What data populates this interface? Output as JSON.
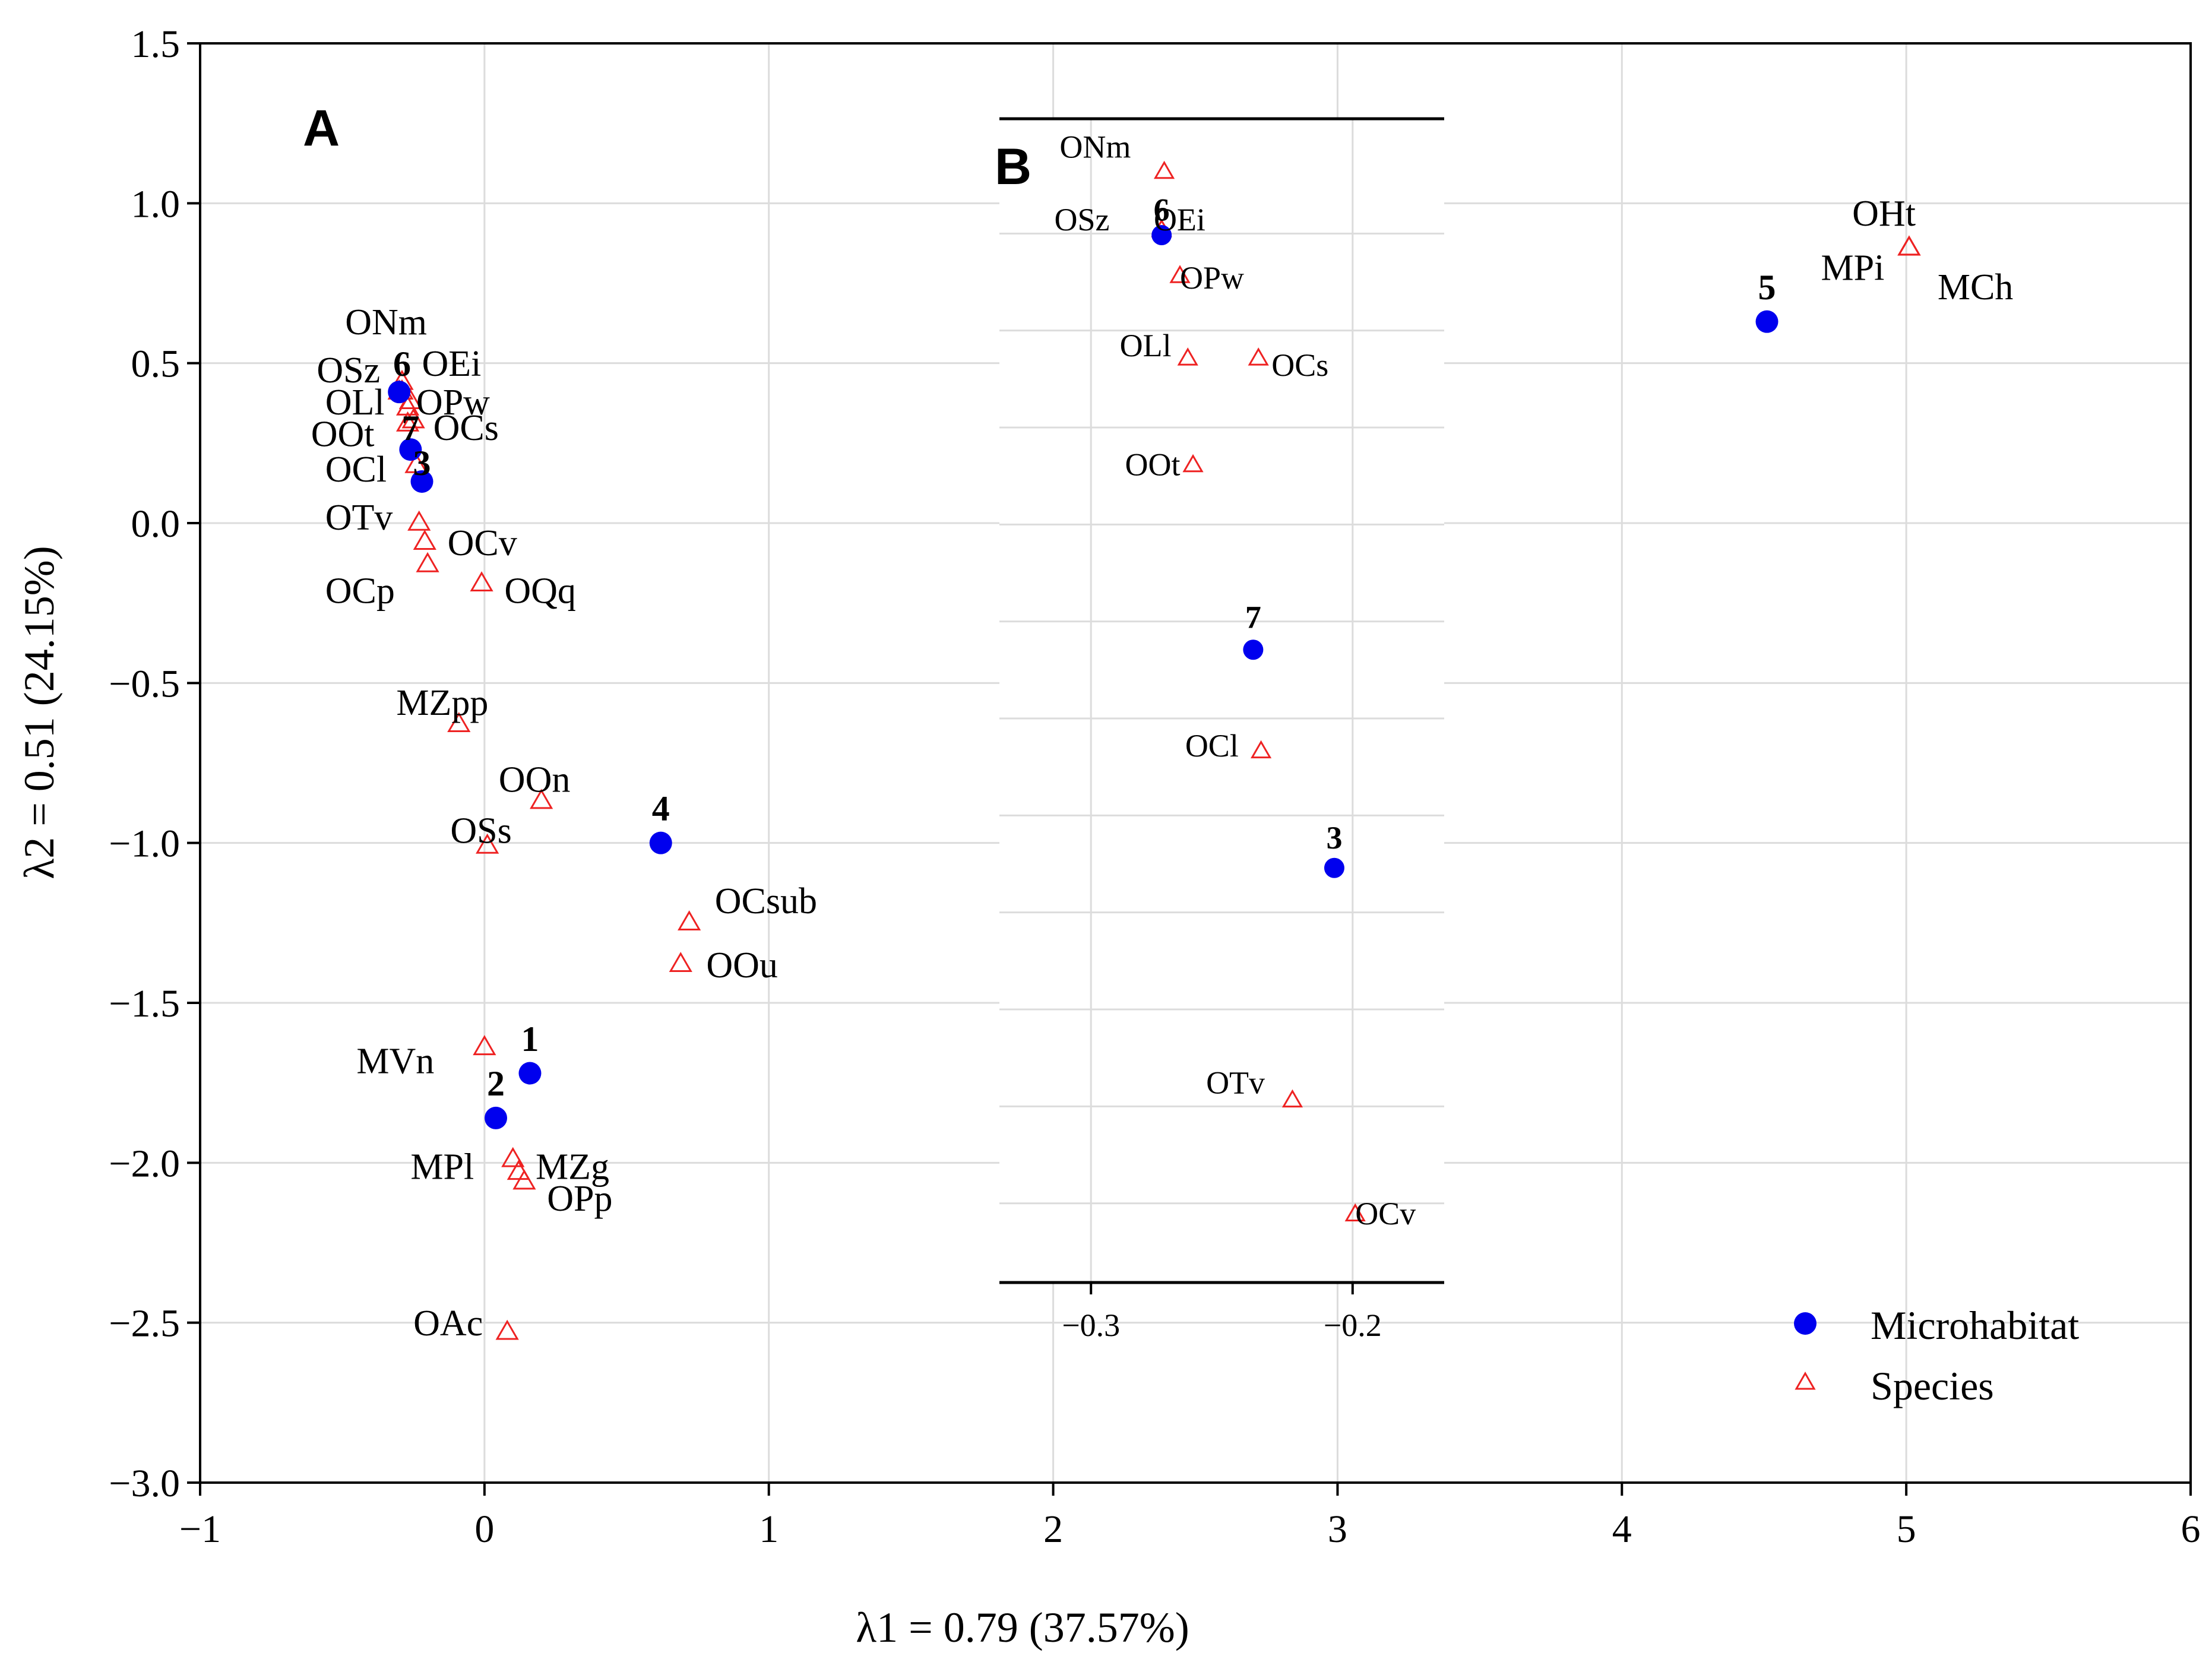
{
  "chart_data": [
    {
      "panel": "A",
      "type": "scatter",
      "xlabel": "λ1 = 0.79 (37.57%)",
      "ylabel": "λ2 = 0.51 (24.15%)",
      "xlim": [
        -1,
        6
      ],
      "ylim": [
        -3,
        1.5
      ],
      "xticks": [
        -1,
        0,
        1,
        2,
        3,
        4,
        5,
        6
      ],
      "yticks": [
        -3.0,
        -2.5,
        -2.0,
        -1.5,
        -1.0,
        -0.5,
        0.0,
        0.5,
        1.0,
        1.5
      ],
      "xtick_labels": [
        "−1",
        "0",
        "1",
        "2",
        "3",
        "4",
        "5",
        "6"
      ],
      "ytick_labels": [
        "−3.0",
        "−2.5",
        "−2.0",
        "−1.5",
        "−1.0",
        "−0.5",
        "0.0",
        "0.5",
        "1.0",
        "1.5"
      ],
      "grid": true,
      "legend_position": "bottom-right",
      "series": [
        {
          "name": "Microhabitat",
          "marker": "filled-circle",
          "color": "#0000ee",
          "points": [
            {
              "label": "1",
              "x": 0.16,
              "y": -1.72
            },
            {
              "label": "2",
              "x": 0.04,
              "y": -1.86
            },
            {
              "label": "3",
              "x": -0.22,
              "y": 0.13
            },
            {
              "label": "4",
              "x": 0.62,
              "y": -1.0
            },
            {
              "label": "5",
              "x": 4.51,
              "y": 0.63
            },
            {
              "label": "6",
              "x": -0.3,
              "y": 0.41
            },
            {
              "label": "7",
              "x": -0.26,
              "y": 0.23
            }
          ]
        },
        {
          "name": "Species",
          "marker": "open-triangle",
          "color": "#ee2222",
          "points": [
            {
              "label": "ONm",
              "x": -0.29,
              "y": 0.44
            },
            {
              "label": "OSz",
              "x": -0.3,
              "y": 0.41
            },
            {
              "label": "OEi",
              "x": -0.29,
              "y": 0.41
            },
            {
              "label": "OLl",
              "x": -0.27,
              "y": 0.36
            },
            {
              "label": "OPw",
              "x": -0.26,
              "y": 0.38
            },
            {
              "label": "OOt",
              "x": -0.27,
              "y": 0.31
            },
            {
              "label": "OCs",
              "x": -0.25,
              "y": 0.32
            },
            {
              "label": "OCl",
              "x": -0.24,
              "y": 0.18
            },
            {
              "label": "OTv",
              "x": -0.23,
              "y": 0.0
            },
            {
              "label": "OCv",
              "x": -0.21,
              "y": -0.06
            },
            {
              "label": "OCp",
              "x": -0.2,
              "y": -0.13
            },
            {
              "label": "OQq",
              "x": -0.01,
              "y": -0.19
            },
            {
              "label": "MZpp",
              "x": -0.09,
              "y": -0.63
            },
            {
              "label": "OOn",
              "x": 0.2,
              "y": -0.87
            },
            {
              "label": "OSs",
              "x": 0.01,
              "y": -1.01
            },
            {
              "label": "OCsub",
              "x": 0.72,
              "y": -1.25
            },
            {
              "label": "OOu",
              "x": 0.69,
              "y": -1.38
            },
            {
              "label": "MVn",
              "x": 0.0,
              "y": -1.64
            },
            {
              "label": "MPl",
              "x": 0.1,
              "y": -1.99
            },
            {
              "label": "MZg",
              "x": 0.12,
              "y": -2.03
            },
            {
              "label": "OPp",
              "x": 0.14,
              "y": -2.06
            },
            {
              "label": "OAc",
              "x": 0.08,
              "y": -2.53
            },
            {
              "label": "OHt",
              "x": 5.01,
              "y": 0.86
            },
            {
              "label": "MPi",
              "x": 5.01,
              "y": 0.86
            },
            {
              "label": "MCh",
              "x": 5.01,
              "y": 0.86
            }
          ]
        }
      ]
    },
    {
      "panel": "B",
      "type": "scatter",
      "description_scope": "zoomed inset of the upper-left cluster of panel A",
      "xlim": [
        -0.335,
        -0.165
      ],
      "ylim": [
        -0.02,
        0.46
      ],
      "xticks": [
        -0.3,
        -0.2
      ],
      "xtick_labels": [
        "−0.3",
        "−0.2"
      ],
      "grid": true,
      "series": [
        {
          "name": "Microhabitat",
          "points": [
            {
              "label": "6",
              "x": -0.273,
              "y": 0.412
            },
            {
              "label": "7",
              "x": -0.238,
              "y": 0.241
            },
            {
              "label": "3",
              "x": -0.207,
              "y": 0.151
            }
          ]
        },
        {
          "name": "Species",
          "points": [
            {
              "label": "ONm",
              "x": -0.272,
              "y": 0.438
            },
            {
              "label": "OSz",
              "x": -0.273,
              "y": 0.414
            },
            {
              "label": "OEi",
              "x": -0.273,
              "y": 0.414
            },
            {
              "label": "OPw",
              "x": -0.266,
              "y": 0.395
            },
            {
              "label": "OLl",
              "x": -0.263,
              "y": 0.361
            },
            {
              "label": "OCs",
              "x": -0.236,
              "y": 0.361
            },
            {
              "label": "OOt",
              "x": -0.261,
              "y": 0.317
            },
            {
              "label": "OCl",
              "x": -0.235,
              "y": 0.199
            },
            {
              "label": "OTv",
              "x": -0.223,
              "y": 0.055
            },
            {
              "label": "OCv",
              "x": -0.199,
              "y": 0.008
            }
          ]
        }
      ]
    }
  ],
  "panel_labels": {
    "a": "A",
    "b": "B"
  },
  "legend": {
    "microhabitat": "Microhabitat",
    "species": "Species"
  },
  "colors": {
    "microhabitat": "#0000ee",
    "species": "#ee2222",
    "grid": "#dcdcdc",
    "axis": "#000000"
  }
}
